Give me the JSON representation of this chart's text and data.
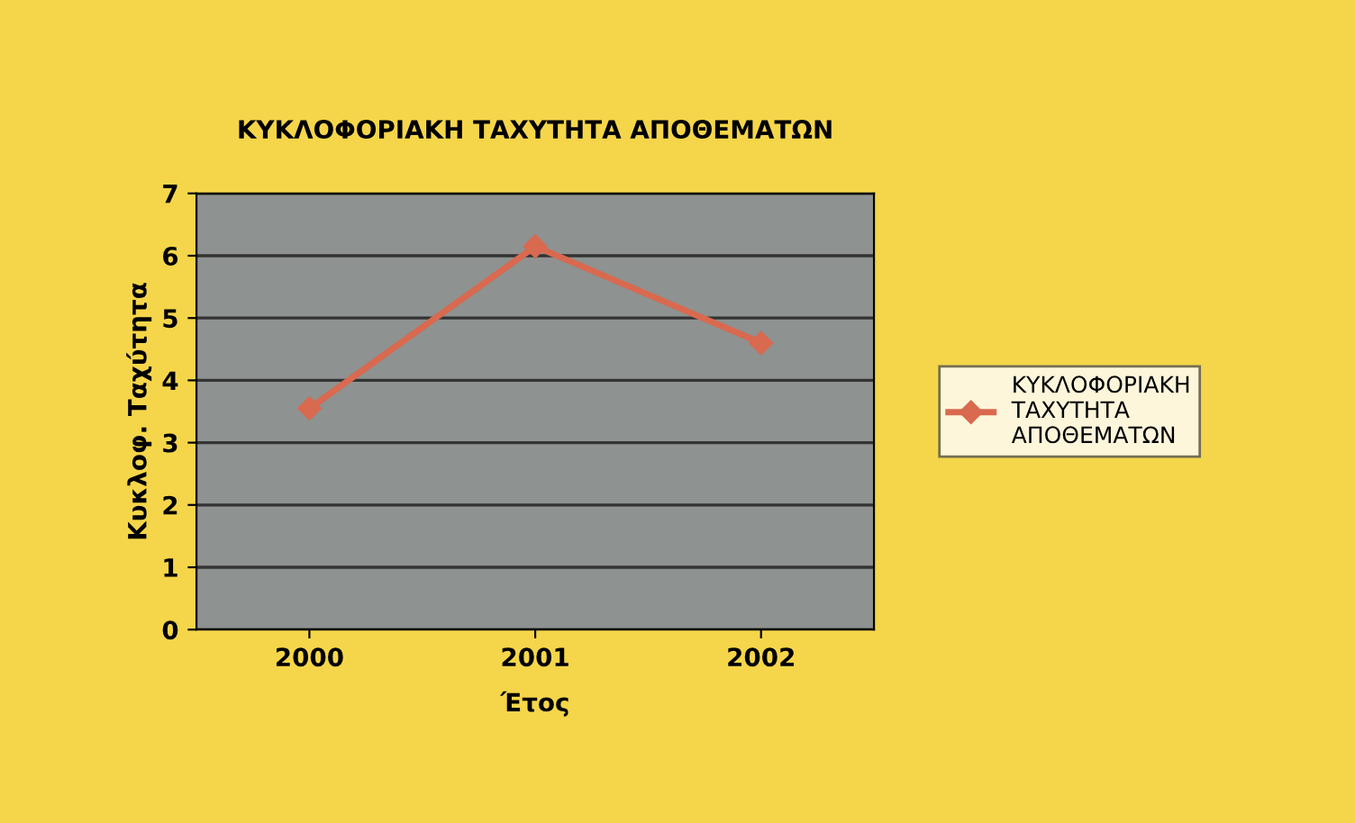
{
  "chart_data": {
    "type": "line",
    "title": "ΚΥΚΛΟΦΟΡΙΑΚΗ ΤΑΧΥΤΗΤΑ ΑΠΟΘΕΜΑΤΩΝ",
    "xlabel": "Έτος",
    "ylabel": "Κυκλοφ. Ταχύτητα",
    "categories": [
      "2000",
      "2001",
      "2002"
    ],
    "series": [
      {
        "name": "ΚΥΚΛΟΦΟΡΙΑΚΗ ΤΑΧΥΤΗΤΑ ΑΠΟΘΕΜΑΤΩΝ",
        "color": "#d9694f",
        "values": [
          3.55,
          6.15,
          4.6
        ]
      }
    ],
    "ylim": [
      0,
      7
    ],
    "yticks": [
      0,
      1,
      2,
      3,
      4,
      5,
      6,
      7
    ],
    "grid": "y",
    "legend": "right",
    "marker": "diamond",
    "line_style": "solid"
  }
}
